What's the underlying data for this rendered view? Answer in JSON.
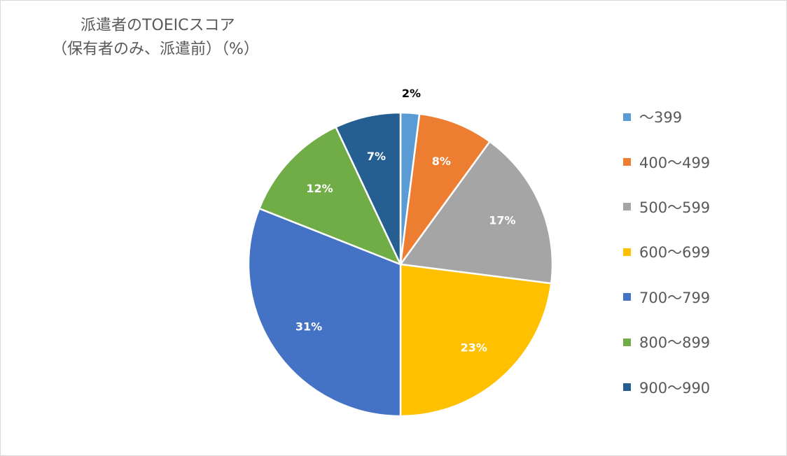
{
  "chart_data": {
    "type": "pie",
    "title_line1": "派遣者のTOEICスコア",
    "title_line2": "（保有者のみ、派遣前）（%）",
    "categories": [
      "～399",
      "400～499",
      "500～599",
      "600～699",
      "700～799",
      "800～899",
      "900～990"
    ],
    "values": [
      2,
      8,
      17,
      23,
      31,
      12,
      7
    ],
    "labels": [
      "2%",
      "8%",
      "17%",
      "23%",
      "31%",
      "12%",
      "7%"
    ],
    "colors": [
      "#5b9bd5",
      "#ed7d31",
      "#a5a5a5",
      "#ffc000",
      "#4472c4",
      "#70ad47",
      "#255e91"
    ],
    "legend_position": "right",
    "start_angle": "top (12 o'clock), clockwise"
  }
}
